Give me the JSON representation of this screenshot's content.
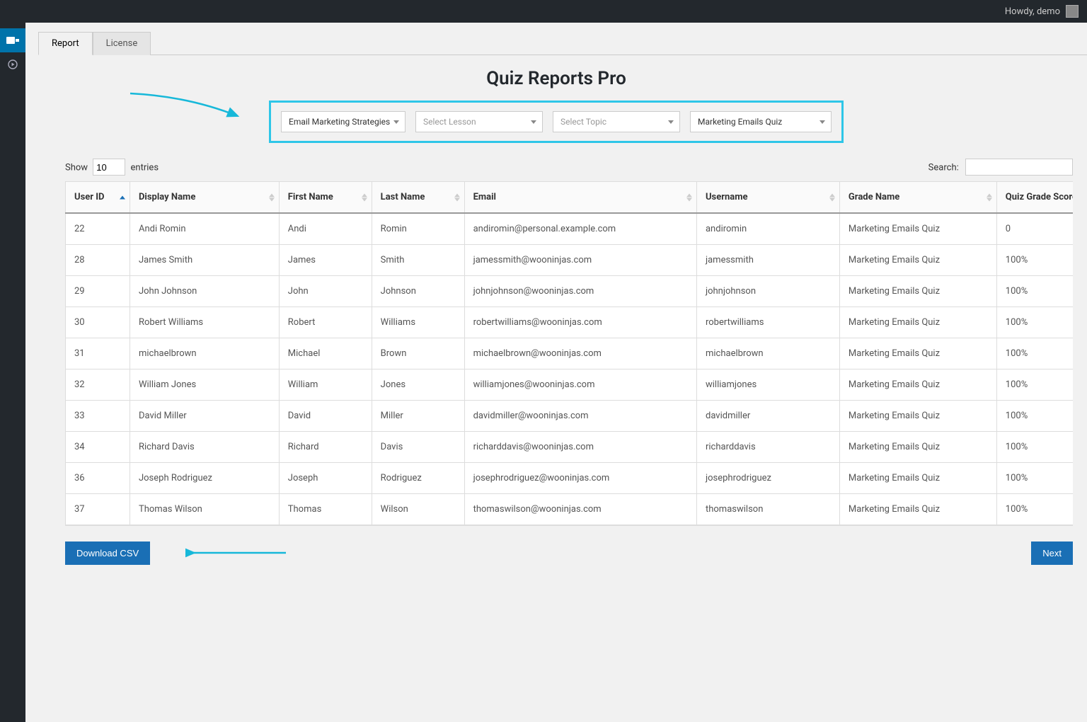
{
  "adminbar": {
    "greeting": "Howdy, demo"
  },
  "tabs": {
    "report": "Report",
    "license": "License"
  },
  "page": {
    "title": "Quiz Reports Pro"
  },
  "filters": {
    "course": "Email Marketing Strategies",
    "lesson_placeholder": "Select Lesson",
    "topic_placeholder": "Select Topic",
    "quiz": "Marketing Emails Quiz"
  },
  "table_controls": {
    "show_prefix": "Show",
    "show_value": "10",
    "show_suffix": "entries",
    "search_label": "Search:"
  },
  "columns": {
    "user_id": "User ID",
    "display_name": "Display Name",
    "first_name": "First Name",
    "last_name": "Last Name",
    "email": "Email",
    "username": "Username",
    "grade_name": "Grade Name",
    "grade_score": "Quiz Grade Score"
  },
  "rows": [
    {
      "user_id": "22",
      "display_name": "Andi Romin",
      "first_name": "Andi",
      "last_name": "Romin",
      "email": "andiromin@personal.example.com",
      "username": "andiromin",
      "grade_name": "Marketing Emails Quiz",
      "grade_score": "0"
    },
    {
      "user_id": "28",
      "display_name": "James Smith",
      "first_name": "James",
      "last_name": "Smith",
      "email": "jamessmith@wooninjas.com",
      "username": "jamessmith",
      "grade_name": "Marketing Emails Quiz",
      "grade_score": "100%"
    },
    {
      "user_id": "29",
      "display_name": "John Johnson",
      "first_name": "John",
      "last_name": "Johnson",
      "email": "johnjohnson@wooninjas.com",
      "username": "johnjohnson",
      "grade_name": "Marketing Emails Quiz",
      "grade_score": "100%"
    },
    {
      "user_id": "30",
      "display_name": "Robert Williams",
      "first_name": "Robert",
      "last_name": "Williams",
      "email": "robertwilliams@wooninjas.com",
      "username": "robertwilliams",
      "grade_name": "Marketing Emails Quiz",
      "grade_score": "100%"
    },
    {
      "user_id": "31",
      "display_name": "michaelbrown",
      "first_name": "Michael",
      "last_name": "Brown",
      "email": "michaelbrown@wooninjas.com",
      "username": "michaelbrown",
      "grade_name": "Marketing Emails Quiz",
      "grade_score": "100%"
    },
    {
      "user_id": "32",
      "display_name": "William Jones",
      "first_name": "William",
      "last_name": "Jones",
      "email": "williamjones@wooninjas.com",
      "username": "williamjones",
      "grade_name": "Marketing Emails Quiz",
      "grade_score": "100%"
    },
    {
      "user_id": "33",
      "display_name": "David Miller",
      "first_name": "David",
      "last_name": "Miller",
      "email": "davidmiller@wooninjas.com",
      "username": "davidmiller",
      "grade_name": "Marketing Emails Quiz",
      "grade_score": "100%"
    },
    {
      "user_id": "34",
      "display_name": "Richard Davis",
      "first_name": "Richard",
      "last_name": "Davis",
      "email": "richarddavis@wooninjas.com",
      "username": "richarddavis",
      "grade_name": "Marketing Emails Quiz",
      "grade_score": "100%"
    },
    {
      "user_id": "36",
      "display_name": "Joseph Rodriguez",
      "first_name": "Joseph",
      "last_name": "Rodriguez",
      "email": "josephrodriguez@wooninjas.com",
      "username": "josephrodriguez",
      "grade_name": "Marketing Emails Quiz",
      "grade_score": "100%"
    },
    {
      "user_id": "37",
      "display_name": "Thomas Wilson",
      "first_name": "Thomas",
      "last_name": "Wilson",
      "email": "thomaswilson@wooninjas.com",
      "username": "thomaswilson",
      "grade_name": "Marketing Emails Quiz",
      "grade_score": "100%"
    }
  ],
  "buttons": {
    "download": "Download CSV",
    "next": "Next"
  },
  "colors": {
    "accent": "#1a6fb5",
    "highlight_border": "#2ec6e8",
    "arrow": "#17b8d9",
    "adminbar_bg": "#23282d",
    "page_bg": "#f1f1f1",
    "border": "#ddd"
  }
}
